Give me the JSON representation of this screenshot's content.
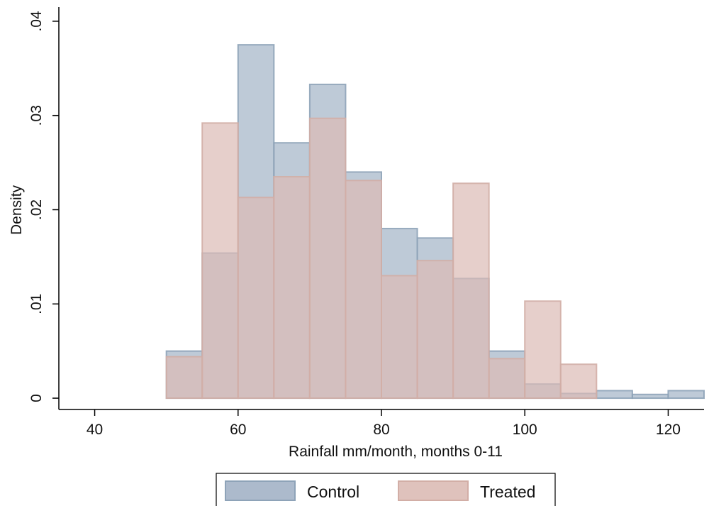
{
  "chart_data": {
    "type": "bar",
    "title": "",
    "xlabel": "Rainfall mm/month, months 0-11",
    "ylabel": "Density",
    "xlim": [
      35,
      125
    ],
    "ylim": [
      -0.0012,
      0.0415
    ],
    "bin_width": 5,
    "x_ticks": [
      40,
      60,
      80,
      100,
      120
    ],
    "x_tick_labels": [
      "40",
      "60",
      "80",
      "100",
      "120"
    ],
    "y_ticks": [
      0,
      0.01,
      0.02,
      0.03,
      0.04
    ],
    "y_tick_labels": [
      "0",
      ".01",
      ".02",
      ".03",
      ".04"
    ],
    "grid": false,
    "legend_position": "bottom",
    "series": [
      {
        "name": "Control",
        "fill": "#a3b3c6",
        "stroke": "#8ea3b8",
        "bins": [
          [
            50,
            0.005
          ],
          [
            55,
            0.0154
          ],
          [
            60,
            0.0375
          ],
          [
            65,
            0.0271
          ],
          [
            70,
            0.0333
          ],
          [
            75,
            0.024
          ],
          [
            80,
            0.018
          ],
          [
            85,
            0.017
          ],
          [
            90,
            0.0127
          ],
          [
            95,
            0.005
          ],
          [
            100,
            0.0015
          ],
          [
            105,
            0.0005
          ],
          [
            110,
            0.0008
          ],
          [
            115,
            0.0004
          ],
          [
            120,
            0.0008
          ]
        ]
      },
      {
        "name": "Treated",
        "fill": "#dbbbb5",
        "stroke": "#d2aea6",
        "bins": [
          [
            50,
            0.0044
          ],
          [
            55,
            0.0292
          ],
          [
            60,
            0.0213
          ],
          [
            65,
            0.0235
          ],
          [
            70,
            0.0297
          ],
          [
            75,
            0.0231
          ],
          [
            80,
            0.013
          ],
          [
            85,
            0.0146
          ],
          [
            90,
            0.0228
          ],
          [
            95,
            0.0042
          ],
          [
            100,
            0.0103
          ],
          [
            105,
            0.0036
          ]
        ]
      }
    ]
  }
}
